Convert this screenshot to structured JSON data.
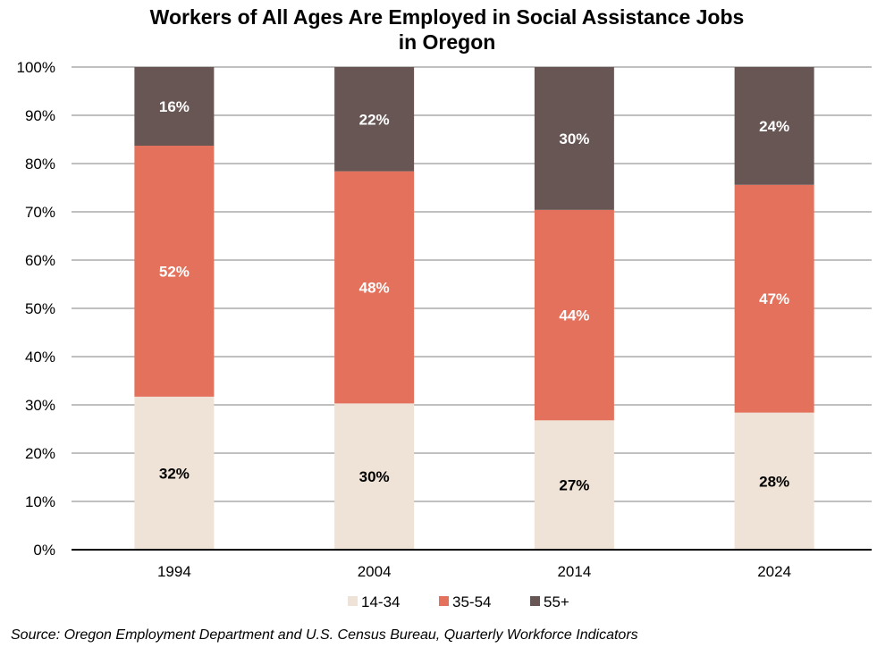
{
  "chart_data": {
    "type": "bar",
    "stacked": true,
    "title_lines": [
      "Workers of All Ages Are Employed in Social Assistance Jobs",
      "in Oregon"
    ],
    "categories": [
      "1994",
      "2004",
      "2014",
      "2024"
    ],
    "series": [
      {
        "name": "14-34",
        "color": "#EFE2D6",
        "label_color": "#000000",
        "values": [
          32,
          30,
          27,
          28
        ],
        "labels": [
          "32%",
          "30%",
          "27%",
          "28%"
        ]
      },
      {
        "name": "35-54",
        "color": "#E3715C",
        "label_color": "#ffffff",
        "values": [
          52,
          48,
          44,
          47
        ],
        "labels": [
          "52%",
          "48%",
          "44%",
          "47%"
        ]
      },
      {
        "name": "55+",
        "color": "#675654",
        "label_color": "#ffffff",
        "values": [
          16,
          22,
          30,
          24
        ],
        "labels": [
          "16%",
          "22%",
          "30%",
          "24%"
        ]
      }
    ],
    "boundaries": [
      [
        31.7,
        83.7,
        100
      ],
      [
        30.3,
        78.4,
        100
      ],
      [
        26.8,
        70.4,
        100
      ],
      [
        28.4,
        75.6,
        100
      ]
    ],
    "xlabel": "",
    "ylabel": "",
    "ylim": [
      0,
      100
    ],
    "yticks": [
      0,
      10,
      20,
      30,
      40,
      50,
      60,
      70,
      80,
      90,
      100
    ],
    "ytick_labels": [
      "0%",
      "10%",
      "20%",
      "30%",
      "40%",
      "50%",
      "60%",
      "70%",
      "80%",
      "90%",
      "100%"
    ],
    "grid": true,
    "legend_position": "bottom-center",
    "source": "Source: Oregon Employment Department and U.S. Census Bureau, Quarterly Workforce Indicators"
  }
}
